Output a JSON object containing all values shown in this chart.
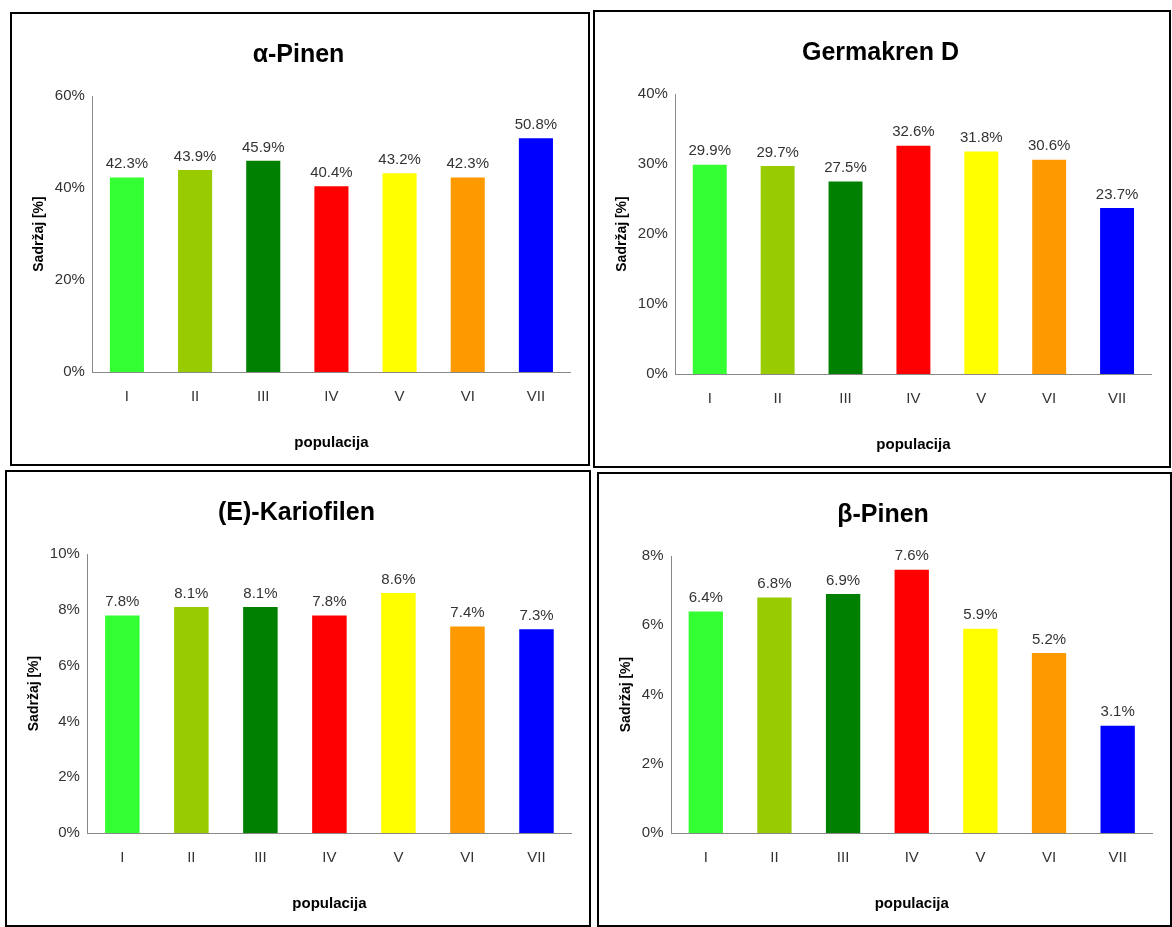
{
  "chart_data": [
    {
      "type": "bar",
      "title": "α-Pinen",
      "xlabel": "populacija",
      "ylabel": "Sadržaj [%]",
      "categories": [
        "I",
        "II",
        "III",
        "IV",
        "V",
        "VI",
        "VII"
      ],
      "values": [
        42.3,
        43.9,
        45.9,
        40.4,
        43.2,
        42.3,
        50.8
      ],
      "value_labels": [
        "42.3%",
        "43.9%",
        "45.9%",
        "40.4%",
        "43.2%",
        "42.3%",
        "50.8%"
      ],
      "colors": [
        "#33ff33",
        "#99cc00",
        "#008000",
        "#ff0000",
        "#ffff00",
        "#ff9900",
        "#0000ff"
      ],
      "ylim": [
        0,
        60
      ],
      "yticks": [
        {
          "value": 0,
          "label": "0%"
        },
        {
          "value": 20,
          "label": "20%"
        },
        {
          "value": 40,
          "label": "40%"
        },
        {
          "value": 60,
          "label": "60%"
        }
      ],
      "grid": false,
      "legend": false
    },
    {
      "type": "bar",
      "title": "Germakren D",
      "xlabel": "populacija",
      "ylabel": "Sadržaj [%]",
      "categories": [
        "I",
        "II",
        "III",
        "IV",
        "V",
        "VI",
        "VII"
      ],
      "values": [
        29.9,
        29.7,
        27.5,
        32.6,
        31.8,
        30.6,
        23.7
      ],
      "value_labels": [
        "29.9%",
        "29.7%",
        "27.5%",
        "32.6%",
        "31.8%",
        "30.6%",
        "23.7%"
      ],
      "colors": [
        "#33ff33",
        "#99cc00",
        "#008000",
        "#ff0000",
        "#ffff00",
        "#ff9900",
        "#0000ff"
      ],
      "ylim": [
        0,
        40
      ],
      "yticks": [
        {
          "value": 0,
          "label": "0%"
        },
        {
          "value": 10,
          "label": "10%"
        },
        {
          "value": 20,
          "label": "20%"
        },
        {
          "value": 30,
          "label": "30%"
        },
        {
          "value": 40,
          "label": "40%"
        }
      ],
      "grid": false,
      "legend": false
    },
    {
      "type": "bar",
      "title": "(E)-Kariofilen",
      "xlabel": "populacija",
      "ylabel": "Sadržaj [%]",
      "categories": [
        "I",
        "II",
        "III",
        "IV",
        "V",
        "VI",
        "VII"
      ],
      "values": [
        7.8,
        8.1,
        8.1,
        7.8,
        8.6,
        7.4,
        7.3
      ],
      "value_labels": [
        "7.8%",
        "8.1%",
        "8.1%",
        "7.8%",
        "8.6%",
        "7.4%",
        "7.3%"
      ],
      "colors": [
        "#33ff33",
        "#99cc00",
        "#008000",
        "#ff0000",
        "#ffff00",
        "#ff9900",
        "#0000ff"
      ],
      "ylim": [
        0,
        10
      ],
      "yticks": [
        {
          "value": 0,
          "label": "0%"
        },
        {
          "value": 2,
          "label": "2%"
        },
        {
          "value": 4,
          "label": "4%"
        },
        {
          "value": 6,
          "label": "6%"
        },
        {
          "value": 8,
          "label": "8%"
        },
        {
          "value": 10,
          "label": "10%"
        }
      ],
      "grid": false,
      "legend": false
    },
    {
      "type": "bar",
      "title": "β-Pinen",
      "xlabel": "populacija",
      "ylabel": "Sadržaj [%]",
      "categories": [
        "I",
        "II",
        "III",
        "IV",
        "V",
        "VI",
        "VII"
      ],
      "values": [
        6.4,
        6.8,
        6.9,
        7.6,
        5.9,
        5.2,
        3.1
      ],
      "value_labels": [
        "6.4%",
        "6.8%",
        "6.9%",
        "7.6%",
        "5.9%",
        "5.2%",
        "3.1%"
      ],
      "colors": [
        "#33ff33",
        "#99cc00",
        "#008000",
        "#ff0000",
        "#ffff00",
        "#ff9900",
        "#0000ff"
      ],
      "ylim": [
        0,
        8
      ],
      "yticks": [
        {
          "value": 0,
          "label": "0%"
        },
        {
          "value": 2,
          "label": "2%"
        },
        {
          "value": 4,
          "label": "4%"
        },
        {
          "value": 6,
          "label": "6%"
        },
        {
          "value": 8,
          "label": "8%"
        }
      ],
      "grid": false,
      "legend": false
    }
  ]
}
